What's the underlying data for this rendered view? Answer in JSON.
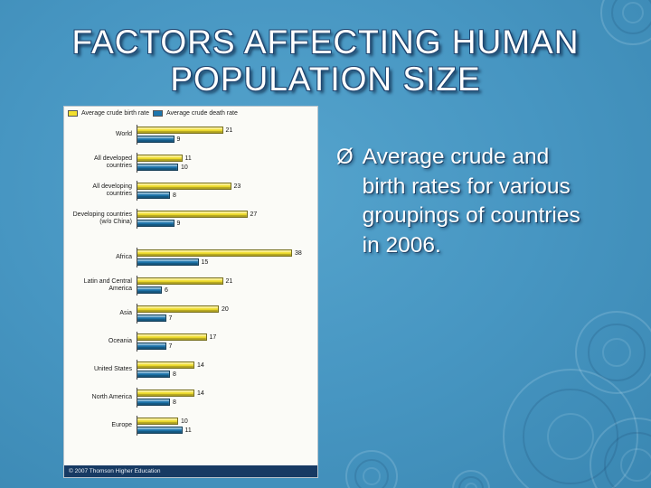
{
  "slide": {
    "title": {
      "line1": "FACTORS AFFECTING HUMAN",
      "line2": "POPULATION SIZE"
    },
    "bullet": {
      "marker": "Ø",
      "text": "Average crude and birth rates for various groupings of countries in 2006."
    },
    "colors": {
      "background_blue": "#4796c2",
      "title_text": "#ffffff",
      "title_outline": "#1e4570"
    }
  },
  "chart_data": {
    "type": "bar",
    "orientation": "horizontal",
    "title": "",
    "xlabel": "",
    "ylabel": "",
    "xlim": [
      0,
      42
    ],
    "grid": false,
    "legend_position": "top",
    "legend": [
      {
        "label": "Average crude birth rate",
        "color": "#f2df2e"
      },
      {
        "label": "Average crude death rate",
        "color": "#1d76ad"
      }
    ],
    "categories": [
      "World",
      "All developed countries",
      "All developing countries",
      "Developing countries (w/o China)",
      "Africa",
      "Latin and Central America",
      "Asia",
      "Oceania",
      "United States",
      "North America",
      "Europe"
    ],
    "series": [
      {
        "name": "Average crude birth rate",
        "color": "#f2df2e",
        "values": [
          21,
          11,
          23,
          27,
          38,
          21,
          20,
          17,
          14,
          14,
          10
        ]
      },
      {
        "name": "Average crude death rate",
        "color": "#1d76ad",
        "values": [
          9,
          10,
          8,
          9,
          15,
          6,
          7,
          7,
          8,
          8,
          11
        ]
      }
    ],
    "footer": "© 2007 Thomson Higher Education"
  }
}
